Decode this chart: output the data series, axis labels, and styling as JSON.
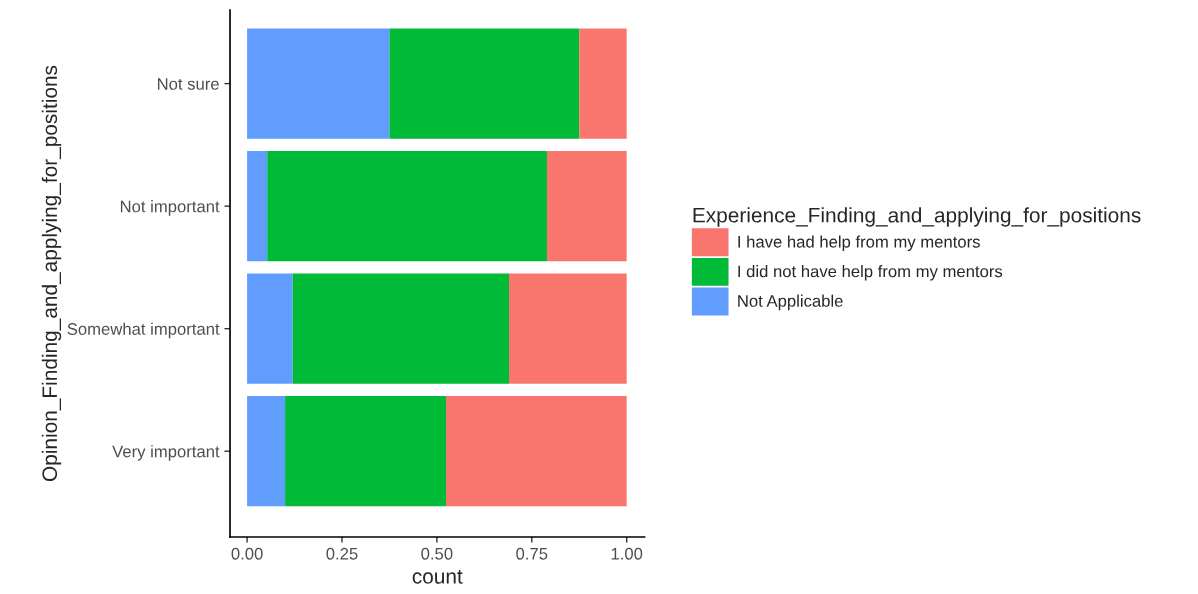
{
  "chart_data": {
    "type": "bar",
    "orientation": "horizontal",
    "stacked": true,
    "xlabel": "count",
    "ylabel": "Opinion_Finding_and_applying_for_positions",
    "legend_title": "Experience_Finding_and_applying_for_positions",
    "categories": [
      "Not sure",
      "Not important",
      "Somewhat important",
      "Very important"
    ],
    "series": [
      {
        "name": "Not Applicable",
        "color": "#619cff",
        "values": [
          0.375,
          0.053,
          0.12,
          0.1
        ]
      },
      {
        "name": "I did not have help from my mentors",
        "color": "#00ba38",
        "values": [
          0.5,
          0.737,
          0.57,
          0.424
        ]
      },
      {
        "name": "I have had help from my mentors",
        "color": "#f8766d",
        "values": [
          0.125,
          0.21,
          0.31,
          0.476
        ]
      }
    ],
    "xlim": [
      -0.045,
      1.047
    ],
    "xticks": [
      {
        "value": 0,
        "label": "0.00"
      },
      {
        "value": 0.25,
        "label": "0.25"
      },
      {
        "value": 0.5,
        "label": "0.50"
      },
      {
        "value": 0.75,
        "label": "0.75"
      },
      {
        "value": 1,
        "label": "1.00"
      }
    ],
    "grid": false,
    "legend": "right"
  }
}
